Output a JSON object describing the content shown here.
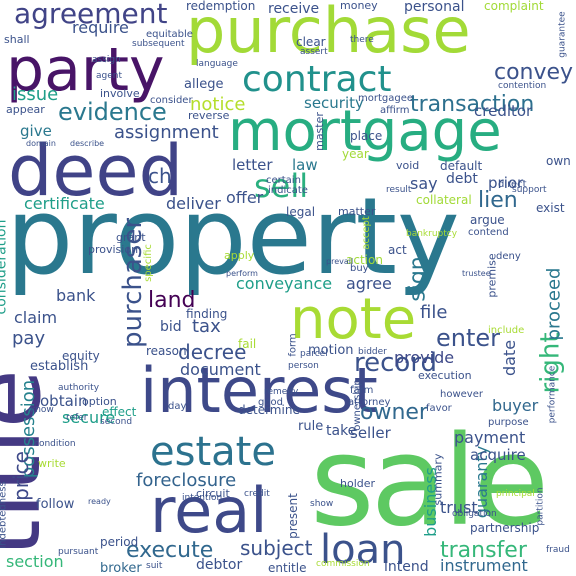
{
  "words": [
    {
      "text": "property",
      "color": "#2a788e"
    },
    {
      "text": "sale",
      "color": "#5ec962"
    },
    {
      "text": "title",
      "color": "#443983"
    },
    {
      "text": "deed",
      "color": "#404387"
    },
    {
      "text": "interest",
      "color": "#3e4989"
    },
    {
      "text": "purchase",
      "color": "#a2da37"
    },
    {
      "text": "mortgage",
      "color": "#27ad81"
    },
    {
      "text": "party",
      "color": "#481467"
    },
    {
      "text": "note",
      "color": "#a8db34"
    },
    {
      "text": "real",
      "color": "#3e4989"
    },
    {
      "text": "contract",
      "color": "#21918c"
    },
    {
      "text": "estate",
      "color": "#2c728e"
    },
    {
      "text": "loan",
      "color": "#3b528b"
    },
    {
      "text": "agreement",
      "color": "#414487"
    },
    {
      "text": "sell",
      "color": "#2ab07f"
    },
    {
      "text": "evidence",
      "color": "#2a788e"
    },
    {
      "text": "record",
      "color": "#3b528b"
    },
    {
      "text": "transfer",
      "color": "#35b779"
    },
    {
      "text": "execute",
      "color": "#31688e"
    },
    {
      "text": "transaction",
      "color": "#2d708e"
    },
    {
      "text": "purchaser",
      "color": "#3b528b"
    },
    {
      "text": "foreclosure",
      "color": "#33638d"
    },
    {
      "text": "subject",
      "color": "#3b528b"
    },
    {
      "text": "decree",
      "color": "#3b528b"
    },
    {
      "text": "right",
      "color": "#35b779"
    },
    {
      "text": "convey",
      "color": "#3b528b"
    },
    {
      "text": "owner",
      "color": "#31688e"
    },
    {
      "text": "land",
      "color": "#440154"
    },
    {
      "text": "enter",
      "color": "#3b528b"
    },
    {
      "text": "lien",
      "color": "#31688e"
    },
    {
      "text": "issue",
      "color": "#1f9e89"
    },
    {
      "text": "notice",
      "color": "#b5de2b"
    },
    {
      "text": "possession",
      "color": "#26828e"
    },
    {
      "text": "assignment",
      "color": "#3b528b"
    },
    {
      "text": "price",
      "color": "#3e4989"
    },
    {
      "text": "security",
      "color": "#2a788e"
    },
    {
      "text": "conveyance",
      "color": "#1f9e89"
    },
    {
      "text": "sign",
      "color": "#2a788e"
    },
    {
      "text": "document",
      "color": "#3b528b"
    },
    {
      "text": "payment",
      "color": "#3b528b"
    },
    {
      "text": "buyer",
      "color": "#31688e"
    },
    {
      "text": "provide",
      "color": "#3e4989"
    },
    {
      "text": "tax",
      "color": "#3b528b"
    },
    {
      "text": "pay",
      "color": "#3b528b"
    },
    {
      "text": "bank",
      "color": "#3b528b"
    },
    {
      "text": "agree",
      "color": "#3b528b"
    },
    {
      "text": "offer",
      "color": "#3b528b"
    },
    {
      "text": "deliver",
      "color": "#3b528b"
    },
    {
      "text": "certificate",
      "color": "#1f9e89"
    },
    {
      "text": "file",
      "color": "#3b528b"
    },
    {
      "text": "proceed",
      "color": "#2a788e"
    },
    {
      "text": "date",
      "color": "#3b528b"
    },
    {
      "text": "consideration",
      "color": "#1f9e89"
    },
    {
      "text": "claim",
      "color": "#3b528b"
    },
    {
      "text": "guaranty",
      "color": "#2a788e"
    },
    {
      "text": "business",
      "color": "#1f9e89"
    },
    {
      "text": "trust",
      "color": "#3b528b"
    },
    {
      "text": "section",
      "color": "#35b779"
    },
    {
      "text": "broker",
      "color": "#31688e"
    },
    {
      "text": "debtor",
      "color": "#3b528b"
    },
    {
      "text": "entitle",
      "color": "#3b528b"
    },
    {
      "text": "intend",
      "color": "#3b528b"
    },
    {
      "text": "instrument",
      "color": "#31688e"
    },
    {
      "text": "acquire",
      "color": "#3b528b"
    },
    {
      "text": "seller",
      "color": "#3b528b"
    },
    {
      "text": "take",
      "color": "#3b528b"
    },
    {
      "text": "rule",
      "color": "#3b528b"
    },
    {
      "text": "secure",
      "color": "#1f9e89"
    },
    {
      "text": "obtain",
      "color": "#3b528b"
    },
    {
      "text": "motion",
      "color": "#3b528b"
    },
    {
      "text": "say",
      "color": "#3b528b"
    },
    {
      "text": "debt",
      "color": "#3b528b"
    },
    {
      "text": "prior",
      "color": "#3b528b"
    },
    {
      "text": "letter",
      "color": "#3b528b"
    },
    {
      "text": "law",
      "color": "#2a788e"
    },
    {
      "text": "give",
      "color": "#2a788e"
    },
    {
      "text": "require",
      "color": "#3b528b"
    },
    {
      "text": "creditor",
      "color": "#3b528b"
    },
    {
      "text": "redemption",
      "color": "#3b528b"
    },
    {
      "text": "receive",
      "color": "#3b528b"
    },
    {
      "text": "personal",
      "color": "#3b528b"
    },
    {
      "text": "complaint",
      "color": "#a2da37"
    },
    {
      "text": "money",
      "color": "#3b528b"
    },
    {
      "text": "clear",
      "color": "#3b528b"
    },
    {
      "text": "allege",
      "color": "#3b528b"
    },
    {
      "text": "finding",
      "color": "#3b528b"
    },
    {
      "text": "equity",
      "color": "#3b528b"
    },
    {
      "text": "establish",
      "color": "#3b528b"
    },
    {
      "text": "follow",
      "color": "#3b528b"
    },
    {
      "text": "write",
      "color": "#a8db34"
    },
    {
      "text": "present",
      "color": "#3b528b"
    },
    {
      "text": "determine",
      "color": "#3b528b"
    },
    {
      "text": "partnership",
      "color": "#3b528b"
    },
    {
      "text": "period",
      "color": "#3b528b"
    },
    {
      "text": "holder",
      "color": "#3b528b"
    },
    {
      "text": "summary",
      "color": "#3b528b"
    },
    {
      "text": "effect",
      "color": "#1f9e89"
    },
    {
      "text": "option",
      "color": "#3b528b"
    },
    {
      "text": "reason",
      "color": "#3b528b"
    },
    {
      "text": "bid",
      "color": "#3b528b"
    },
    {
      "text": "fail",
      "color": "#a8db34"
    },
    {
      "text": "ch",
      "color": "#3b528b"
    },
    {
      "text": "year",
      "color": "#a2da37"
    },
    {
      "text": "place",
      "color": "#3b528b"
    },
    {
      "text": "master",
      "color": "#3b528b"
    },
    {
      "text": "void",
      "color": "#3b528b"
    },
    {
      "text": "default",
      "color": "#3b528b"
    },
    {
      "text": "own",
      "color": "#3b528b"
    },
    {
      "text": "exist",
      "color": "#3b528b"
    },
    {
      "text": "direct",
      "color": "#3b528b"
    },
    {
      "text": "matter",
      "color": "#3b528b"
    },
    {
      "text": "legal",
      "color": "#3b528b"
    },
    {
      "text": "collateral",
      "color": "#a2da37"
    },
    {
      "text": "argue",
      "color": "#3b528b"
    },
    {
      "text": "contend",
      "color": "#3b528b"
    },
    {
      "text": "deny",
      "color": "#3b528b"
    },
    {
      "text": "action",
      "color": "#a2da37"
    },
    {
      "text": "buy",
      "color": "#3b528b"
    },
    {
      "text": "act",
      "color": "#3b528b"
    },
    {
      "text": "accept",
      "color": "#a8db34"
    },
    {
      "text": "grant",
      "color": "#3b528b"
    },
    {
      "text": "provision",
      "color": "#3b528b"
    },
    {
      "text": "specific",
      "color": "#a8db34"
    },
    {
      "text": "apply",
      "color": "#a8db34"
    },
    {
      "text": "form",
      "color": "#3b528b"
    },
    {
      "text": "execution",
      "color": "#3b528b"
    },
    {
      "text": "farm",
      "color": "#3b528b"
    },
    {
      "text": "attorney",
      "color": "#3b528b"
    },
    {
      "text": "good",
      "color": "#3b528b"
    },
    {
      "text": "ownership",
      "color": "#3b528b"
    },
    {
      "text": "however",
      "color": "#3b528b"
    },
    {
      "text": "favor",
      "color": "#3b528b"
    },
    {
      "text": "purpose",
      "color": "#3b528b"
    },
    {
      "text": "premise",
      "color": "#3b528b"
    },
    {
      "text": "include",
      "color": "#a8db34"
    },
    {
      "text": "involve",
      "color": "#3b528b"
    },
    {
      "text": "consider",
      "color": "#3b528b"
    },
    {
      "text": "appear",
      "color": "#3b528b"
    },
    {
      "text": "reverse",
      "color": "#3b528b"
    },
    {
      "text": "mortgagee",
      "color": "#3b528b"
    },
    {
      "text": "affirm",
      "color": "#3b528b"
    },
    {
      "text": "certain",
      "color": "#3b528b"
    },
    {
      "text": "indicate",
      "color": "#3b528b"
    },
    {
      "text": "result",
      "color": "#3b528b"
    },
    {
      "text": "support",
      "color": "#3b528b"
    },
    {
      "text": "equitable",
      "color": "#3b528b"
    },
    {
      "text": "subsequent",
      "color": "#3b528b"
    },
    {
      "text": "language",
      "color": "#3b528b"
    },
    {
      "text": "assert",
      "color": "#3b528b"
    },
    {
      "text": "there",
      "color": "#3b528b"
    },
    {
      "text": "shall",
      "color": "#3b528b"
    },
    {
      "text": "assign",
      "color": "#3b528b"
    },
    {
      "text": "agent",
      "color": "#3b528b"
    },
    {
      "text": "guarantee",
      "color": "#3b528b"
    },
    {
      "text": "contention",
      "color": "#3b528b"
    },
    {
      "text": "principal",
      "color": "#a8db34"
    },
    {
      "text": "bankruptcy",
      "color": "#a8db34"
    },
    {
      "text": "condition",
      "color": "#3b528b"
    },
    {
      "text": "indebtedness",
      "color": "#3b528b"
    },
    {
      "text": "intention",
      "color": "#3b528b"
    },
    {
      "text": "circuit",
      "color": "#3b528b"
    },
    {
      "text": "credit",
      "color": "#3b528b"
    },
    {
      "text": "obligation",
      "color": "#3b528b"
    },
    {
      "text": "commission",
      "color": "#a8db34"
    },
    {
      "text": "fraud",
      "color": "#3b528b"
    },
    {
      "text": "partition",
      "color": "#3b528b"
    },
    {
      "text": "performance",
      "color": "#3b528b"
    },
    {
      "text": "pursuant",
      "color": "#3b528b"
    },
    {
      "text": "suit",
      "color": "#3b528b"
    },
    {
      "text": "day",
      "color": "#3b528b"
    },
    {
      "text": "know",
      "color": "#3b528b"
    },
    {
      "text": "refer",
      "color": "#3b528b"
    },
    {
      "text": "second",
      "color": "#3b528b"
    },
    {
      "text": "remedy",
      "color": "#3b528b"
    },
    {
      "text": "authority",
      "color": "#3b528b"
    },
    {
      "text": "parcel",
      "color": "#3b528b"
    },
    {
      "text": "person",
      "color": "#3b528b"
    },
    {
      "text": "bidder",
      "color": "#3b528b"
    },
    {
      "text": "domain",
      "color": "#3b528b"
    },
    {
      "text": "describe",
      "color": "#3b528b"
    },
    {
      "text": "show",
      "color": "#3b528b"
    },
    {
      "text": "trustee",
      "color": "#3b528b"
    },
    {
      "text": "ready",
      "color": "#3b528b"
    },
    {
      "text": "prevail",
      "color": "#3b528b"
    },
    {
      "text": "perform",
      "color": "#3b528b"
    }
  ]
}
